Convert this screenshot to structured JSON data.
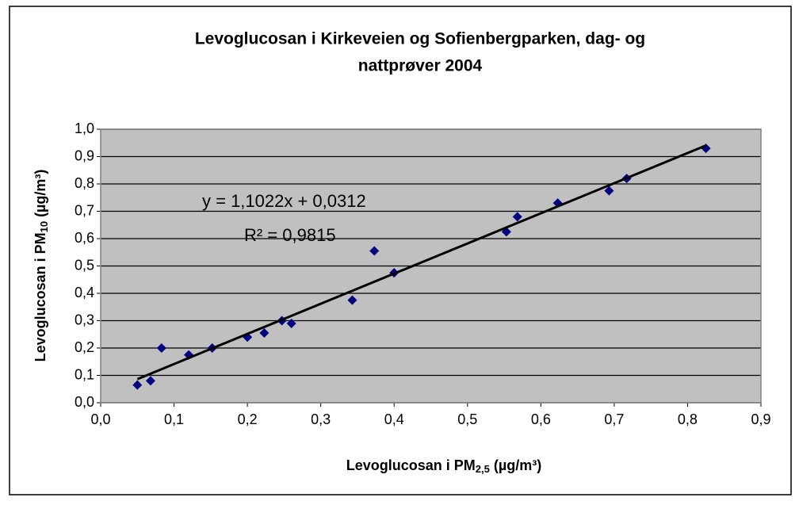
{
  "chart_data": {
    "type": "scatter",
    "title": [
      "Levoglucosan i Kirkeveien og Sofienbergparken, dag- og",
      "nattprøver 2004"
    ],
    "x_label": [
      "Levoglucosan i PM",
      "2,5",
      " (µg/m³)"
    ],
    "y_label": [
      "Levoglucosan i PM",
      "10",
      " (µg/m³)"
    ],
    "series": [
      {
        "color": "#000080",
        "x": [
          0.05,
          0.068,
          0.083,
          0.12,
          0.152,
          0.2,
          0.223,
          0.247,
          0.26,
          0.343,
          0.373,
          0.4,
          0.553,
          0.568,
          0.623,
          0.693,
          0.717,
          0.825
        ],
        "values": [
          0.065,
          0.08,
          0.2,
          0.175,
          0.2,
          0.24,
          0.255,
          0.3,
          0.29,
          0.375,
          0.555,
          0.475,
          0.625,
          0.68,
          0.73,
          0.775,
          0.82,
          0.93
        ]
      }
    ],
    "trendline": {
      "slope": 1.1022,
      "intercept": 0.0312,
      "equation": "y = 1,1022x + 0,0312",
      "r_squared": "R² = 0,9815"
    },
    "xlim": [
      0,
      0.9
    ],
    "xticks": [
      {
        "value": 0,
        "label": "0,0"
      },
      {
        "value": 0.1,
        "label": "0,1"
      },
      {
        "value": 0.2,
        "label": "0,2"
      },
      {
        "value": 0.3,
        "label": "0,3"
      },
      {
        "value": 0.4,
        "label": "0,4"
      },
      {
        "value": 0.5,
        "label": "0,5"
      },
      {
        "value": 0.6,
        "label": "0,6"
      },
      {
        "value": 0.7,
        "label": "0,7"
      },
      {
        "value": 0.8,
        "label": "0,8"
      },
      {
        "value": 0.9,
        "label": "0,9"
      }
    ],
    "ylim": [
      0,
      1
    ],
    "yticks": [
      {
        "value": 0,
        "label": "0,0"
      },
      {
        "value": 0.1,
        "label": "0,1"
      },
      {
        "value": 0.2,
        "label": "0,2"
      },
      {
        "value": 0.3,
        "label": "0,3"
      },
      {
        "value": 0.4,
        "label": "0,4"
      },
      {
        "value": 0.5,
        "label": "0,5"
      },
      {
        "value": 0.6,
        "label": "0,6"
      },
      {
        "value": 0.7,
        "label": "0,7"
      },
      {
        "value": 0.8,
        "label": "0,8"
      },
      {
        "value": 0.9,
        "label": "0,9"
      },
      {
        "value": 1,
        "label": "1,0"
      }
    ],
    "grid": true,
    "plot_background": "#c0c0c0"
  }
}
